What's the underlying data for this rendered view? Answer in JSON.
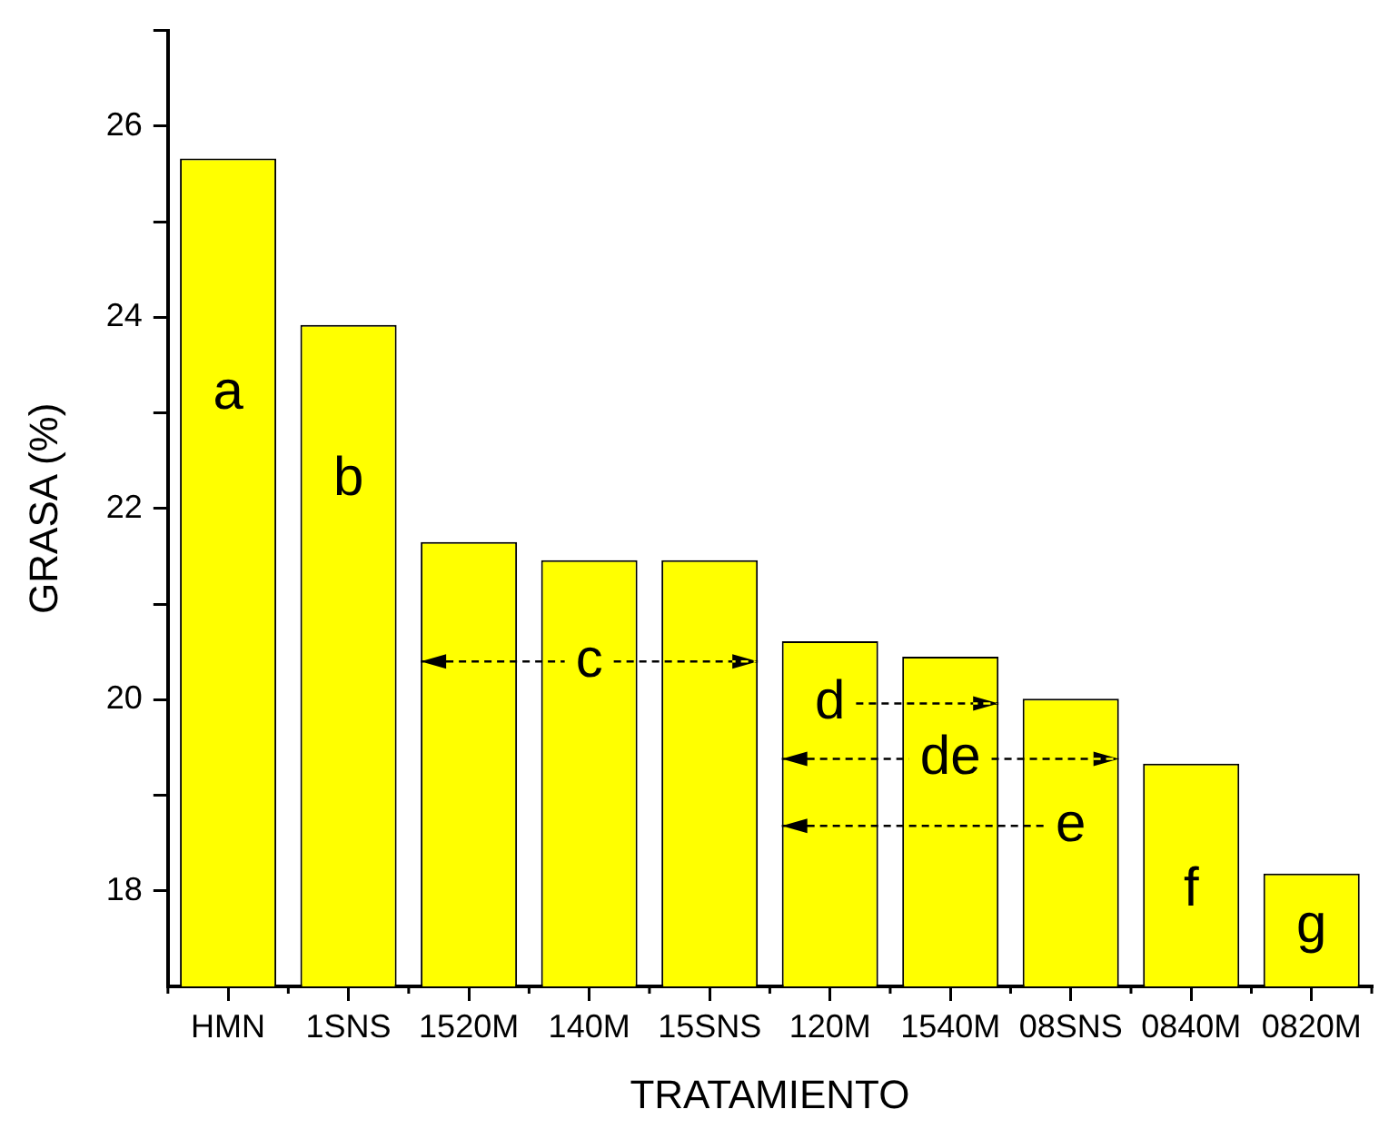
{
  "chart_data": {
    "type": "bar",
    "xlabel": "TRATAMIENTO",
    "ylabel": "GRASA (%)",
    "categories": [
      "HMN",
      "1SNS",
      "1520M",
      "140M",
      "15SNS",
      "120M",
      "1540M",
      "08SNS",
      "0840M",
      "0820M"
    ],
    "values": [
      25.66,
      23.92,
      21.65,
      21.46,
      21.46,
      20.61,
      20.45,
      20.01,
      19.33,
      18.18
    ],
    "color": "#ffff00",
    "ylim": [
      17,
      27
    ],
    "yticks": [
      18,
      {
        "value": 19,
        "label": null
      },
      20,
      {
        "value": 21,
        "label": null
      },
      22,
      {
        "value": 23,
        "label": null
      },
      24,
      {
        "value": 25,
        "label": null
      },
      26,
      {
        "value": 27,
        "label": null
      }
    ],
    "grid": false,
    "legend": false,
    "annotations": [
      "a",
      "b",
      "c",
      "d",
      "de",
      "e",
      "f",
      "g"
    ]
  }
}
